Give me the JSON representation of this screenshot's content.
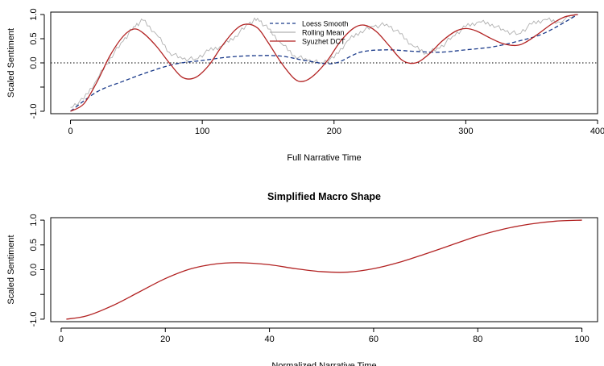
{
  "chart_data": [
    {
      "type": "line",
      "title": "",
      "xlabel": "Full Narrative Time",
      "ylabel": "Scaled Sentiment",
      "xlim": [
        -15,
        400
      ],
      "ylim": [
        -1.05,
        1.05
      ],
      "x_ticks": [
        0,
        100,
        200,
        300,
        400
      ],
      "y_ticks": [
        -1.0,
        -0.5,
        0.0,
        0.5,
        1.0
      ],
      "y_tick_labels": [
        "-1.0",
        "",
        "0.0",
        "0.5",
        "1.0"
      ],
      "hline": {
        "y": 0,
        "style": "dotted"
      },
      "grid": false,
      "legend": {
        "position": "top-center",
        "entries": [
          "Loess Smooth",
          "Rolling Mean",
          "Syuzhet DCT"
        ]
      },
      "series": [
        {
          "name": "Loess Smooth",
          "color": "#1a3a8a",
          "dash": "dashed",
          "x": [
            0,
            20,
            40,
            60,
            80,
            100,
            120,
            140,
            160,
            180,
            200,
            220,
            240,
            260,
            280,
            300,
            320,
            340,
            360,
            385
          ],
          "y": [
            -1.0,
            -0.6,
            -0.38,
            -0.18,
            -0.02,
            0.05,
            0.12,
            0.15,
            0.14,
            0.04,
            -0.01,
            0.22,
            0.27,
            0.24,
            0.22,
            0.27,
            0.33,
            0.45,
            0.62,
            1.0
          ]
        },
        {
          "name": "Rolling Mean",
          "color": "#b0b0b0",
          "dash": "solid",
          "x": [
            0,
            10,
            20,
            30,
            40,
            48,
            55,
            65,
            75,
            85,
            95,
            105,
            115,
            125,
            135,
            142,
            150,
            160,
            170,
            180,
            190,
            200,
            210,
            220,
            230,
            240,
            250,
            260,
            270,
            280,
            290,
            300,
            310,
            320,
            330,
            340,
            350,
            360,
            370,
            385
          ],
          "y": [
            -0.92,
            -0.75,
            -0.35,
            0.1,
            0.45,
            0.75,
            0.88,
            0.6,
            0.22,
            0.08,
            0.08,
            0.25,
            0.35,
            0.55,
            0.8,
            0.92,
            0.7,
            0.4,
            0.15,
            0.05,
            0.0,
            0.1,
            0.45,
            0.65,
            0.75,
            0.8,
            0.6,
            0.35,
            0.2,
            0.3,
            0.55,
            0.75,
            0.85,
            0.8,
            0.65,
            0.6,
            0.8,
            0.9,
            0.85,
            1.0
          ]
        },
        {
          "name": "Syuzhet DCT",
          "color": "#b22222",
          "dash": "solid",
          "x": [
            0,
            10,
            20,
            30,
            40,
            48,
            55,
            65,
            75,
            85,
            95,
            105,
            115,
            125,
            133,
            142,
            150,
            160,
            170,
            177,
            185,
            195,
            205,
            215,
            223,
            232,
            242,
            252,
            262,
            272,
            282,
            292,
            300,
            308,
            318,
            328,
            338,
            345,
            355,
            365,
            375,
            385
          ],
          "y": [
            -1.0,
            -0.85,
            -0.4,
            0.15,
            0.55,
            0.7,
            0.62,
            0.35,
            0.0,
            -0.3,
            -0.3,
            -0.05,
            0.35,
            0.68,
            0.8,
            0.72,
            0.42,
            0.0,
            -0.33,
            -0.38,
            -0.25,
            0.05,
            0.45,
            0.72,
            0.78,
            0.65,
            0.35,
            0.05,
            0.0,
            0.18,
            0.45,
            0.65,
            0.71,
            0.66,
            0.52,
            0.4,
            0.36,
            0.42,
            0.6,
            0.8,
            0.95,
            1.0
          ]
        }
      ]
    },
    {
      "type": "line",
      "title": "Simplified Macro Shape",
      "xlabel": "Normalized Narrative Time",
      "ylabel": "Scaled Sentiment",
      "xlim": [
        -2,
        103
      ],
      "ylim": [
        -1.05,
        1.05
      ],
      "x_ticks": [
        0,
        20,
        40,
        60,
        80,
        100
      ],
      "y_ticks": [
        -1.0,
        -0.5,
        0.0,
        0.5,
        1.0
      ],
      "y_tick_labels": [
        "-1.0",
        "",
        "0.0",
        "0.5",
        "1.0"
      ],
      "grid": false,
      "series": [
        {
          "color": "#b22222",
          "dash": "solid",
          "x": [
            1,
            5,
            10,
            15,
            20,
            25,
            30,
            34,
            40,
            45,
            50,
            55,
            60,
            65,
            70,
            75,
            80,
            85,
            90,
            95,
            100
          ],
          "y": [
            -1.0,
            -0.93,
            -0.72,
            -0.45,
            -0.18,
            0.02,
            0.12,
            0.14,
            0.1,
            0.02,
            -0.04,
            -0.05,
            0.02,
            0.15,
            0.32,
            0.5,
            0.68,
            0.82,
            0.92,
            0.98,
            1.0
          ]
        }
      ]
    }
  ]
}
